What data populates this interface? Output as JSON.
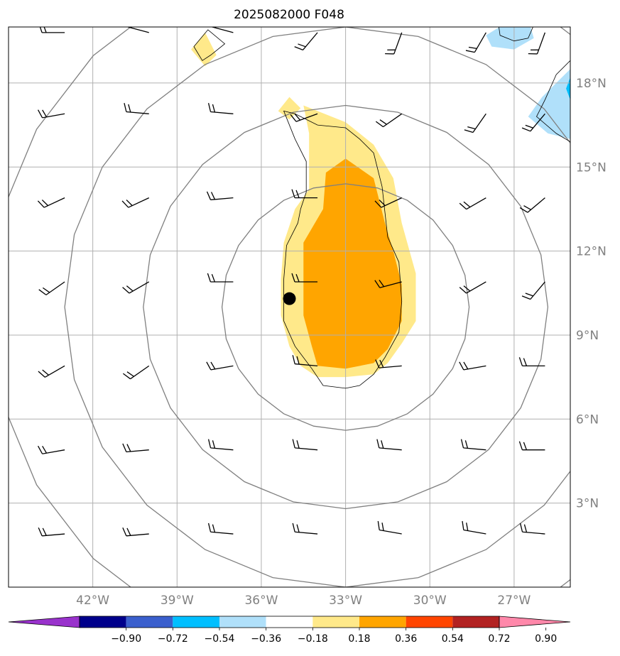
{
  "title": "2025082000 F048",
  "map": {
    "lon_range": [
      -45,
      -25
    ],
    "lat_range": [
      0,
      20
    ],
    "lon_ticks": [
      {
        "value": -42,
        "label": "42°W"
      },
      {
        "value": -39,
        "label": "39°W"
      },
      {
        "value": -36,
        "label": "36°W"
      },
      {
        "value": -33,
        "label": "33°W"
      },
      {
        "value": -30,
        "label": "30°W"
      },
      {
        "value": -27,
        "label": "27°W"
      }
    ],
    "lat_ticks": [
      {
        "value": 3,
        "label": "3°N"
      },
      {
        "value": 6,
        "label": "6°N"
      },
      {
        "value": 9,
        "label": "9°N"
      },
      {
        "value": 12,
        "label": "12°N"
      },
      {
        "value": 15,
        "label": "15°N"
      },
      {
        "value": 18,
        "label": "18°N"
      }
    ],
    "storm_center": {
      "lon": -35.0,
      "lat": 10.3
    },
    "range_ring_center": {
      "lon": -33.0,
      "lat": 10.0
    },
    "range_ring_radii_deg": [
      4.4,
      7.2,
      10.0,
      12.7
    ],
    "colors": {
      "ring": "#808080",
      "grid": "#b0b0b0",
      "contour": "#000000",
      "center_marker": "#000000"
    }
  },
  "colorbar": {
    "ticks": [
      "−0.90",
      "−0.72",
      "−0.54",
      "−0.36",
      "−0.18",
      "0.18",
      "0.36",
      "0.54",
      "0.72",
      "0.90"
    ],
    "colors": [
      "#9932cc",
      "#00008b",
      "#3a5fcd",
      "#00bfff",
      "#b0e0fa",
      "#ffffff",
      "#ffe98a",
      "#ffa500",
      "#ff4500",
      "#b22222",
      "#ff88aa"
    ]
  },
  "shaded_regions": [
    {
      "name": "positive-light",
      "color": "#ffe98a",
      "points": [
        [
          -34.5,
          17.2
        ],
        [
          -33.0,
          16.6
        ],
        [
          -32.0,
          15.8
        ],
        [
          -31.3,
          14.6
        ],
        [
          -31.0,
          13.0
        ],
        [
          -30.5,
          11.2
        ],
        [
          -30.5,
          9.5
        ],
        [
          -31.0,
          8.7
        ],
        [
          -31.5,
          8.0
        ],
        [
          -32.0,
          7.6
        ],
        [
          -33.0,
          7.5
        ],
        [
          -34.0,
          7.5
        ],
        [
          -34.6,
          7.9
        ],
        [
          -35.0,
          8.6
        ],
        [
          -35.3,
          9.7
        ],
        [
          -35.3,
          11.0
        ],
        [
          -35.2,
          12.3
        ],
        [
          -34.8,
          13.5
        ],
        [
          -34.3,
          14.2
        ],
        [
          -34.3,
          15.4
        ],
        [
          -34.3,
          16.2
        ]
      ]
    },
    {
      "name": "positive-light-small",
      "color": "#ffe98a",
      "points": [
        [
          -35.4,
          17.0
        ],
        [
          -35.0,
          17.5
        ],
        [
          -34.6,
          17.1
        ],
        [
          -35.0,
          16.7
        ]
      ]
    },
    {
      "name": "positive-light-north",
      "color": "#ffe98a",
      "points": [
        [
          -38.5,
          19.2
        ],
        [
          -38.0,
          19.8
        ],
        [
          -37.6,
          19.0
        ],
        [
          -38.0,
          18.6
        ]
      ]
    },
    {
      "name": "positive-medium",
      "color": "#ffa500",
      "points": [
        [
          -33.7,
          14.8
        ],
        [
          -33.0,
          15.3
        ],
        [
          -32.0,
          14.6
        ],
        [
          -31.6,
          13.0
        ],
        [
          -31.3,
          12.0
        ],
        [
          -31.0,
          10.8
        ],
        [
          -31.0,
          9.5
        ],
        [
          -31.5,
          8.5
        ],
        [
          -32.0,
          8.0
        ],
        [
          -33.0,
          7.8
        ],
        [
          -34.0,
          7.9
        ],
        [
          -34.2,
          8.6
        ],
        [
          -34.5,
          9.7
        ],
        [
          -34.5,
          11.0
        ],
        [
          -34.5,
          12.3
        ],
        [
          -33.8,
          13.5
        ]
      ]
    },
    {
      "name": "negative-light-ne",
      "color": "#b0e0fa",
      "points": [
        [
          -27.2,
          20.2
        ],
        [
          -26.5,
          20.3
        ],
        [
          -26.3,
          19.6
        ],
        [
          -27.0,
          19.2
        ],
        [
          -27.8,
          19.3
        ],
        [
          -28.0,
          19.7
        ]
      ]
    },
    {
      "name": "negative-light-e",
      "color": "#b0e0fa",
      "points": [
        [
          -25.0,
          18.5
        ],
        [
          -25.5,
          18.0
        ],
        [
          -26.0,
          17.5
        ],
        [
          -26.5,
          16.8
        ],
        [
          -25.8,
          16.2
        ],
        [
          -25.0,
          16.0
        ]
      ]
    },
    {
      "name": "negative-medium-e",
      "color": "#00bfff",
      "points": [
        [
          -25.0,
          18.2
        ],
        [
          -25.15,
          17.8
        ],
        [
          -25.0,
          17.4
        ]
      ]
    }
  ],
  "contour_lines": [
    {
      "name": "contour-main",
      "closed": true,
      "points": [
        [
          -35.2,
          17.0
        ],
        [
          -34.8,
          16.9
        ],
        [
          -34.0,
          16.5
        ],
        [
          -33.0,
          16.4
        ],
        [
          -32.5,
          16.0
        ],
        [
          -32.0,
          15.5
        ],
        [
          -31.7,
          14.3
        ],
        [
          -31.5,
          12.5
        ],
        [
          -31.1,
          11.6
        ],
        [
          -31.0,
          10.2
        ],
        [
          -31.1,
          9.1
        ],
        [
          -31.6,
          8.2
        ],
        [
          -32.0,
          7.6
        ],
        [
          -32.5,
          7.2
        ],
        [
          -33.0,
          7.1
        ],
        [
          -33.8,
          7.2
        ],
        [
          -34.2,
          7.8
        ],
        [
          -34.8,
          8.6
        ],
        [
          -35.2,
          9.5
        ],
        [
          -35.2,
          11.0
        ],
        [
          -35.1,
          12.2
        ],
        [
          -34.7,
          13.0
        ],
        [
          -34.6,
          13.5
        ],
        [
          -34.4,
          14.1
        ],
        [
          -34.4,
          15.2
        ],
        [
          -34.8,
          16.0
        ]
      ]
    },
    {
      "name": "contour-north",
      "closed": true,
      "points": [
        [
          -37.8,
          19.0
        ],
        [
          -38.1,
          18.8
        ],
        [
          -38.4,
          19.3
        ],
        [
          -37.9,
          19.9
        ],
        [
          -37.3,
          19.4
        ]
      ]
    },
    {
      "name": "contour-ne",
      "closed": false,
      "points": [
        [
          -27.6,
          20.4
        ],
        [
          -27.5,
          19.7
        ],
        [
          -27.0,
          19.5
        ],
        [
          -26.5,
          19.6
        ],
        [
          -26.2,
          20.3
        ]
      ]
    },
    {
      "name": "contour-e",
      "closed": false,
      "points": [
        [
          -25.0,
          18.8
        ],
        [
          -25.5,
          18.3
        ],
        [
          -25.9,
          17.4
        ],
        [
          -26.2,
          16.8
        ],
        [
          -25.5,
          16.2
        ],
        [
          -25.0,
          15.9
        ]
      ]
    }
  ],
  "wind_barbs": {
    "lons": [
      -43,
      -40,
      -37,
      -34,
      -31,
      -28,
      -25.9
    ],
    "lats": [
      19.8,
      16.9,
      13.9,
      10.9,
      7.9,
      4.9,
      1.9
    ],
    "rows": [
      {
        "dirs": [
          270,
          285,
          285,
          220,
          200,
          210,
          200
        ]
      },
      {
        "dirs": [
          260,
          275,
          275,
          250,
          235,
          215,
          220
        ]
      },
      {
        "dirs": [
          245,
          245,
          265,
          270,
          245,
          240,
          230
        ]
      },
      {
        "dirs": [
          235,
          240,
          270,
          270,
          255,
          240,
          220
        ]
      },
      {
        "dirs": [
          240,
          235,
          260,
          275,
          265,
          260,
          270
        ]
      },
      {
        "dirs": [
          260,
          265,
          275,
          275,
          275,
          275,
          270
        ]
      },
      {
        "dirs": [
          265,
          265,
          275,
          275,
          280,
          280,
          275
        ]
      }
    ]
  }
}
